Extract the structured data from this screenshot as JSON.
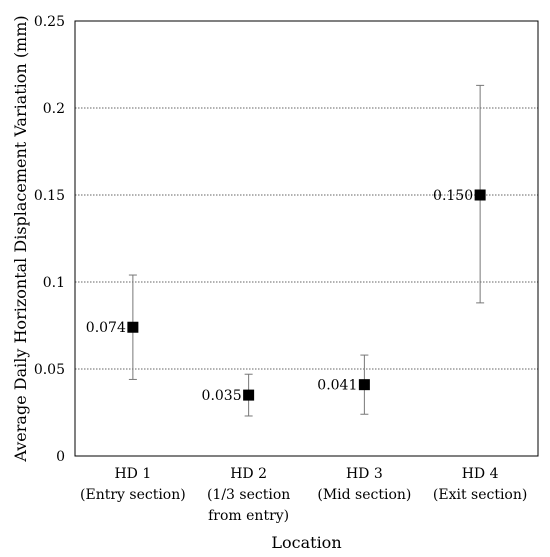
{
  "chart_data": {
    "type": "scatter",
    "title": "",
    "xlabel": "Location",
    "ylabel": "Average Daily Horizontal Displacement Variation (mm)",
    "ylim": [
      0,
      0.25
    ],
    "yticks": [
      "0",
      "0.05",
      "0.1",
      "0.15",
      "0.2",
      "0.25"
    ],
    "grid": "horizontal dotted",
    "legend": "none",
    "marker": "square",
    "marker_color": "#000000",
    "categories": [
      [
        "HD 1",
        "(Entry section)"
      ],
      [
        "HD 2",
        "(1/3 section",
        "from entry)"
      ],
      [
        "HD 3",
        "(Mid section)"
      ],
      [
        "HD 4",
        "(Exit section)"
      ]
    ],
    "points": [
      {
        "value": 0.074,
        "label": "0.074",
        "err_low": 0.044,
        "err_high": 0.104
      },
      {
        "value": 0.035,
        "label": "0.035",
        "err_low": 0.023,
        "err_high": 0.047
      },
      {
        "value": 0.041,
        "label": "0.041",
        "err_low": 0.024,
        "err_high": 0.058
      },
      {
        "value": 0.15,
        "label": "0.150",
        "err_low": 0.088,
        "err_high": 0.213
      }
    ]
  }
}
